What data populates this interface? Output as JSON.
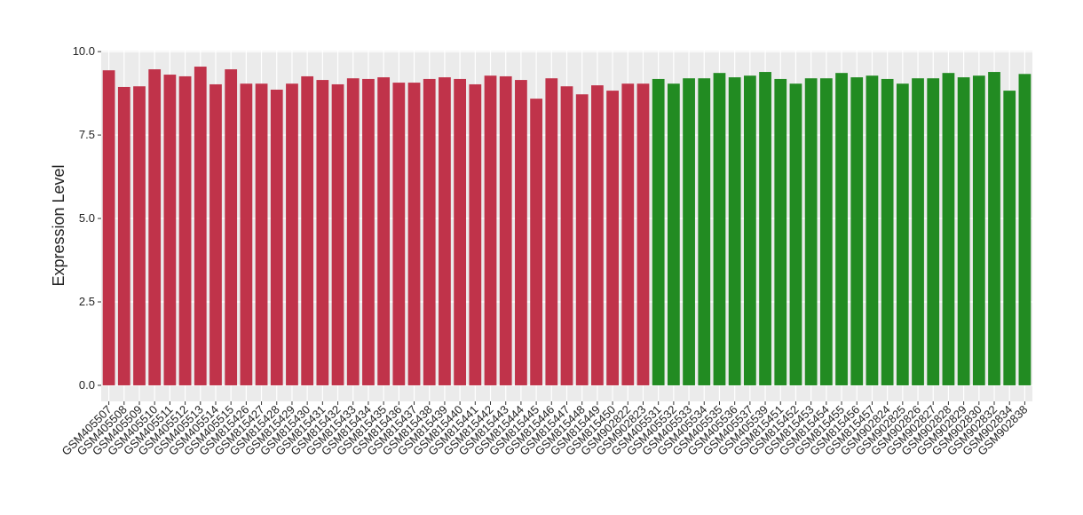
{
  "chart_data": {
    "type": "bar",
    "y_label": "Expression Level",
    "categories": [
      "GSM405507",
      "GSM405508",
      "GSM405509",
      "GSM405510",
      "GSM405511",
      "GSM405512",
      "GSM405513",
      "GSM405514",
      "GSM405515",
      "GSM815426",
      "GSM815427",
      "GSM815428",
      "GSM815429",
      "GSM815430",
      "GSM815431",
      "GSM815432",
      "GSM815433",
      "GSM815434",
      "GSM815435",
      "GSM815436",
      "GSM815437",
      "GSM815438",
      "GSM815439",
      "GSM815440",
      "GSM815441",
      "GSM815442",
      "GSM815443",
      "GSM815444",
      "GSM815445",
      "GSM815446",
      "GSM815447",
      "GSM815448",
      "GSM815449",
      "GSM815450",
      "GSM902822",
      "GSM902823",
      "GSM405531",
      "GSM405532",
      "GSM405533",
      "GSM405534",
      "GSM405535",
      "GSM405536",
      "GSM405537",
      "GSM405539",
      "GSM815451",
      "GSM815452",
      "GSM815453",
      "GSM815454",
      "GSM815455",
      "GSM815456",
      "GSM815457",
      "GSM902824",
      "GSM902825",
      "GSM902826",
      "GSM902827",
      "GSM902828",
      "GSM902829",
      "GSM902830",
      "GSM902832",
      "GSM902834",
      "GSM902838"
    ],
    "values": [
      9.44,
      8.94,
      8.96,
      9.47,
      9.31,
      9.26,
      9.55,
      9.02,
      9.47,
      9.04,
      9.04,
      8.86,
      9.04,
      9.26,
      9.15,
      9.02,
      9.2,
      9.18,
      9.23,
      9.07,
      9.07,
      9.18,
      9.23,
      9.18,
      9.02,
      9.28,
      9.26,
      9.15,
      8.59,
      9.2,
      8.96,
      8.72,
      8.99,
      8.83,
      9.04,
      9.04,
      9.18,
      9.04,
      9.2,
      9.2,
      9.36,
      9.23,
      9.28,
      9.39,
      9.18,
      9.04,
      9.2,
      9.2,
      9.36,
      9.23,
      9.28,
      9.18,
      9.04,
      9.2,
      9.2,
      9.36,
      9.23,
      9.28,
      9.39,
      8.83,
      9.33
    ],
    "colors": [
      "#c0334a",
      "#c0334a",
      "#c0334a",
      "#c0334a",
      "#c0334a",
      "#c0334a",
      "#c0334a",
      "#c0334a",
      "#c0334a",
      "#c0334a",
      "#c0334a",
      "#c0334a",
      "#c0334a",
      "#c0334a",
      "#c0334a",
      "#c0334a",
      "#c0334a",
      "#c0334a",
      "#c0334a",
      "#c0334a",
      "#c0334a",
      "#c0334a",
      "#c0334a",
      "#c0334a",
      "#c0334a",
      "#c0334a",
      "#c0334a",
      "#c0334a",
      "#c0334a",
      "#c0334a",
      "#c0334a",
      "#c0334a",
      "#c0334a",
      "#c0334a",
      "#c0334a",
      "#c0334a",
      "#228b22",
      "#228b22",
      "#228b22",
      "#228b22",
      "#228b22",
      "#228b22",
      "#228b22",
      "#228b22",
      "#228b22",
      "#228b22",
      "#228b22",
      "#228b22",
      "#228b22",
      "#228b22",
      "#228b22",
      "#228b22",
      "#228b22",
      "#228b22",
      "#228b22",
      "#228b22",
      "#228b22",
      "#228b22",
      "#228b22",
      "#228b22",
      "#228b22"
    ],
    "ylim": [
      -0.48,
      10.03
    ],
    "yticks": [
      {
        "value": 0,
        "label": "0.0"
      },
      {
        "value": 2.5,
        "label": "2.5"
      },
      {
        "value": 5,
        "label": "5.0"
      },
      {
        "value": 7.5,
        "label": "7.5"
      },
      {
        "value": 10,
        "label": "10.0"
      }
    ],
    "grid": true
  }
}
